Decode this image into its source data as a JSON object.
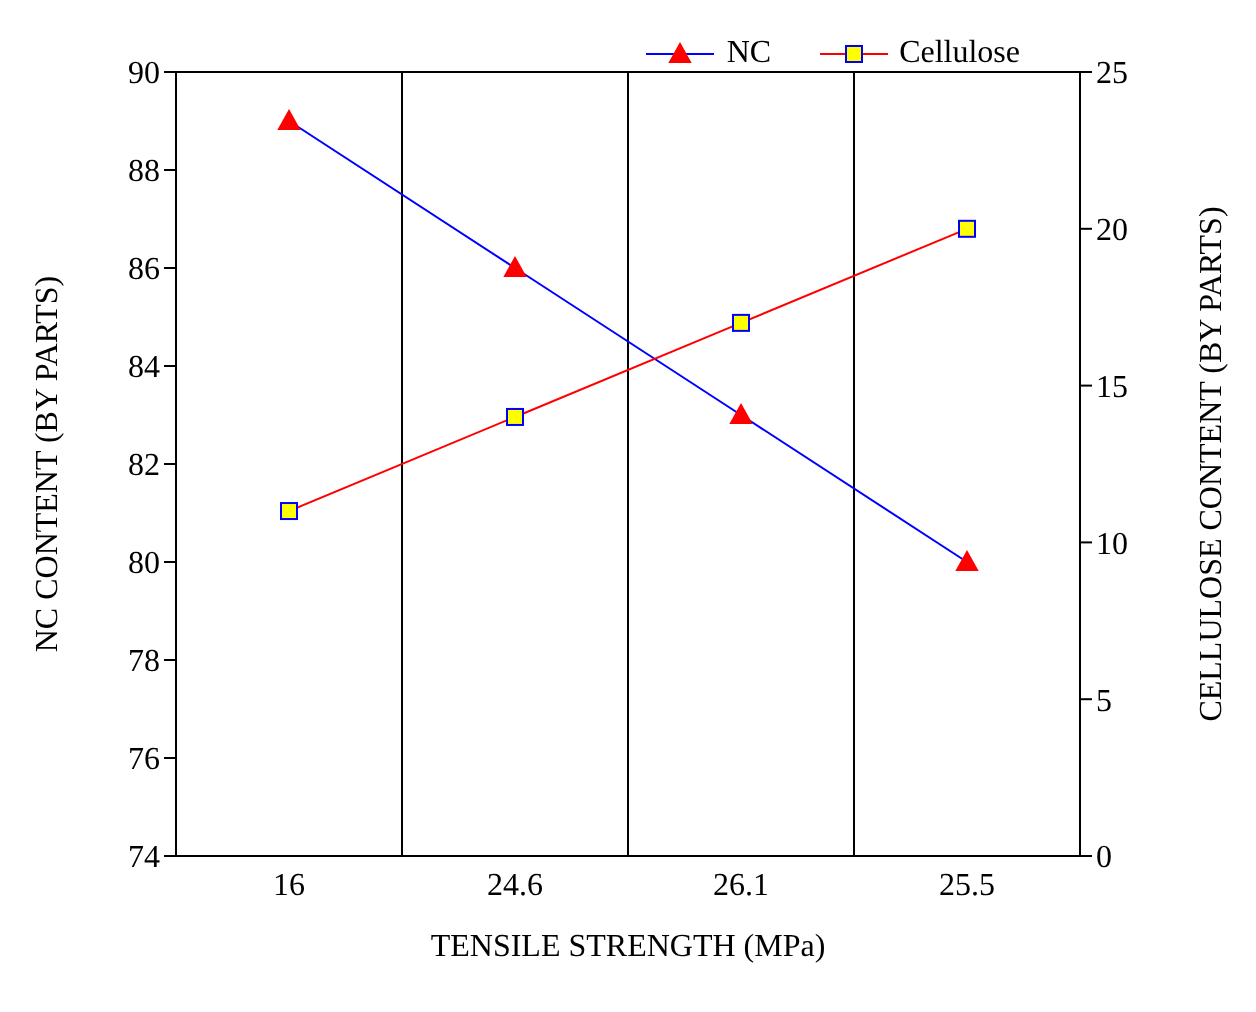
{
  "chart_data": {
    "type": "line",
    "xlabel": "TENSILE STRENGTH (MPa)",
    "ylabel": "NC CONTENT (BY PARTS)",
    "y2label": "CELLULOSE CONTENT (BY PARTS)",
    "categories": [
      "16",
      "24.6",
      "26.1",
      "25.5"
    ],
    "series": [
      {
        "name": "NC",
        "color": "#0000ff",
        "values": [
          89,
          86,
          83,
          80
        ],
        "marker": "triangle"
      },
      {
        "name": "Cellulose",
        "color": "#ff0000",
        "values": [
          11,
          14,
          17,
          20
        ],
        "axis": "y2",
        "marker": "square"
      }
    ],
    "ylim": [
      74,
      90
    ],
    "yticks": [
      74,
      76,
      78,
      80,
      82,
      84,
      86,
      88,
      90
    ],
    "y2lim": [
      0,
      25
    ],
    "y2ticks": [
      0,
      5,
      10,
      15,
      20,
      25
    ],
    "grid": true,
    "legend": "top right",
    "line_style": "solid"
  }
}
